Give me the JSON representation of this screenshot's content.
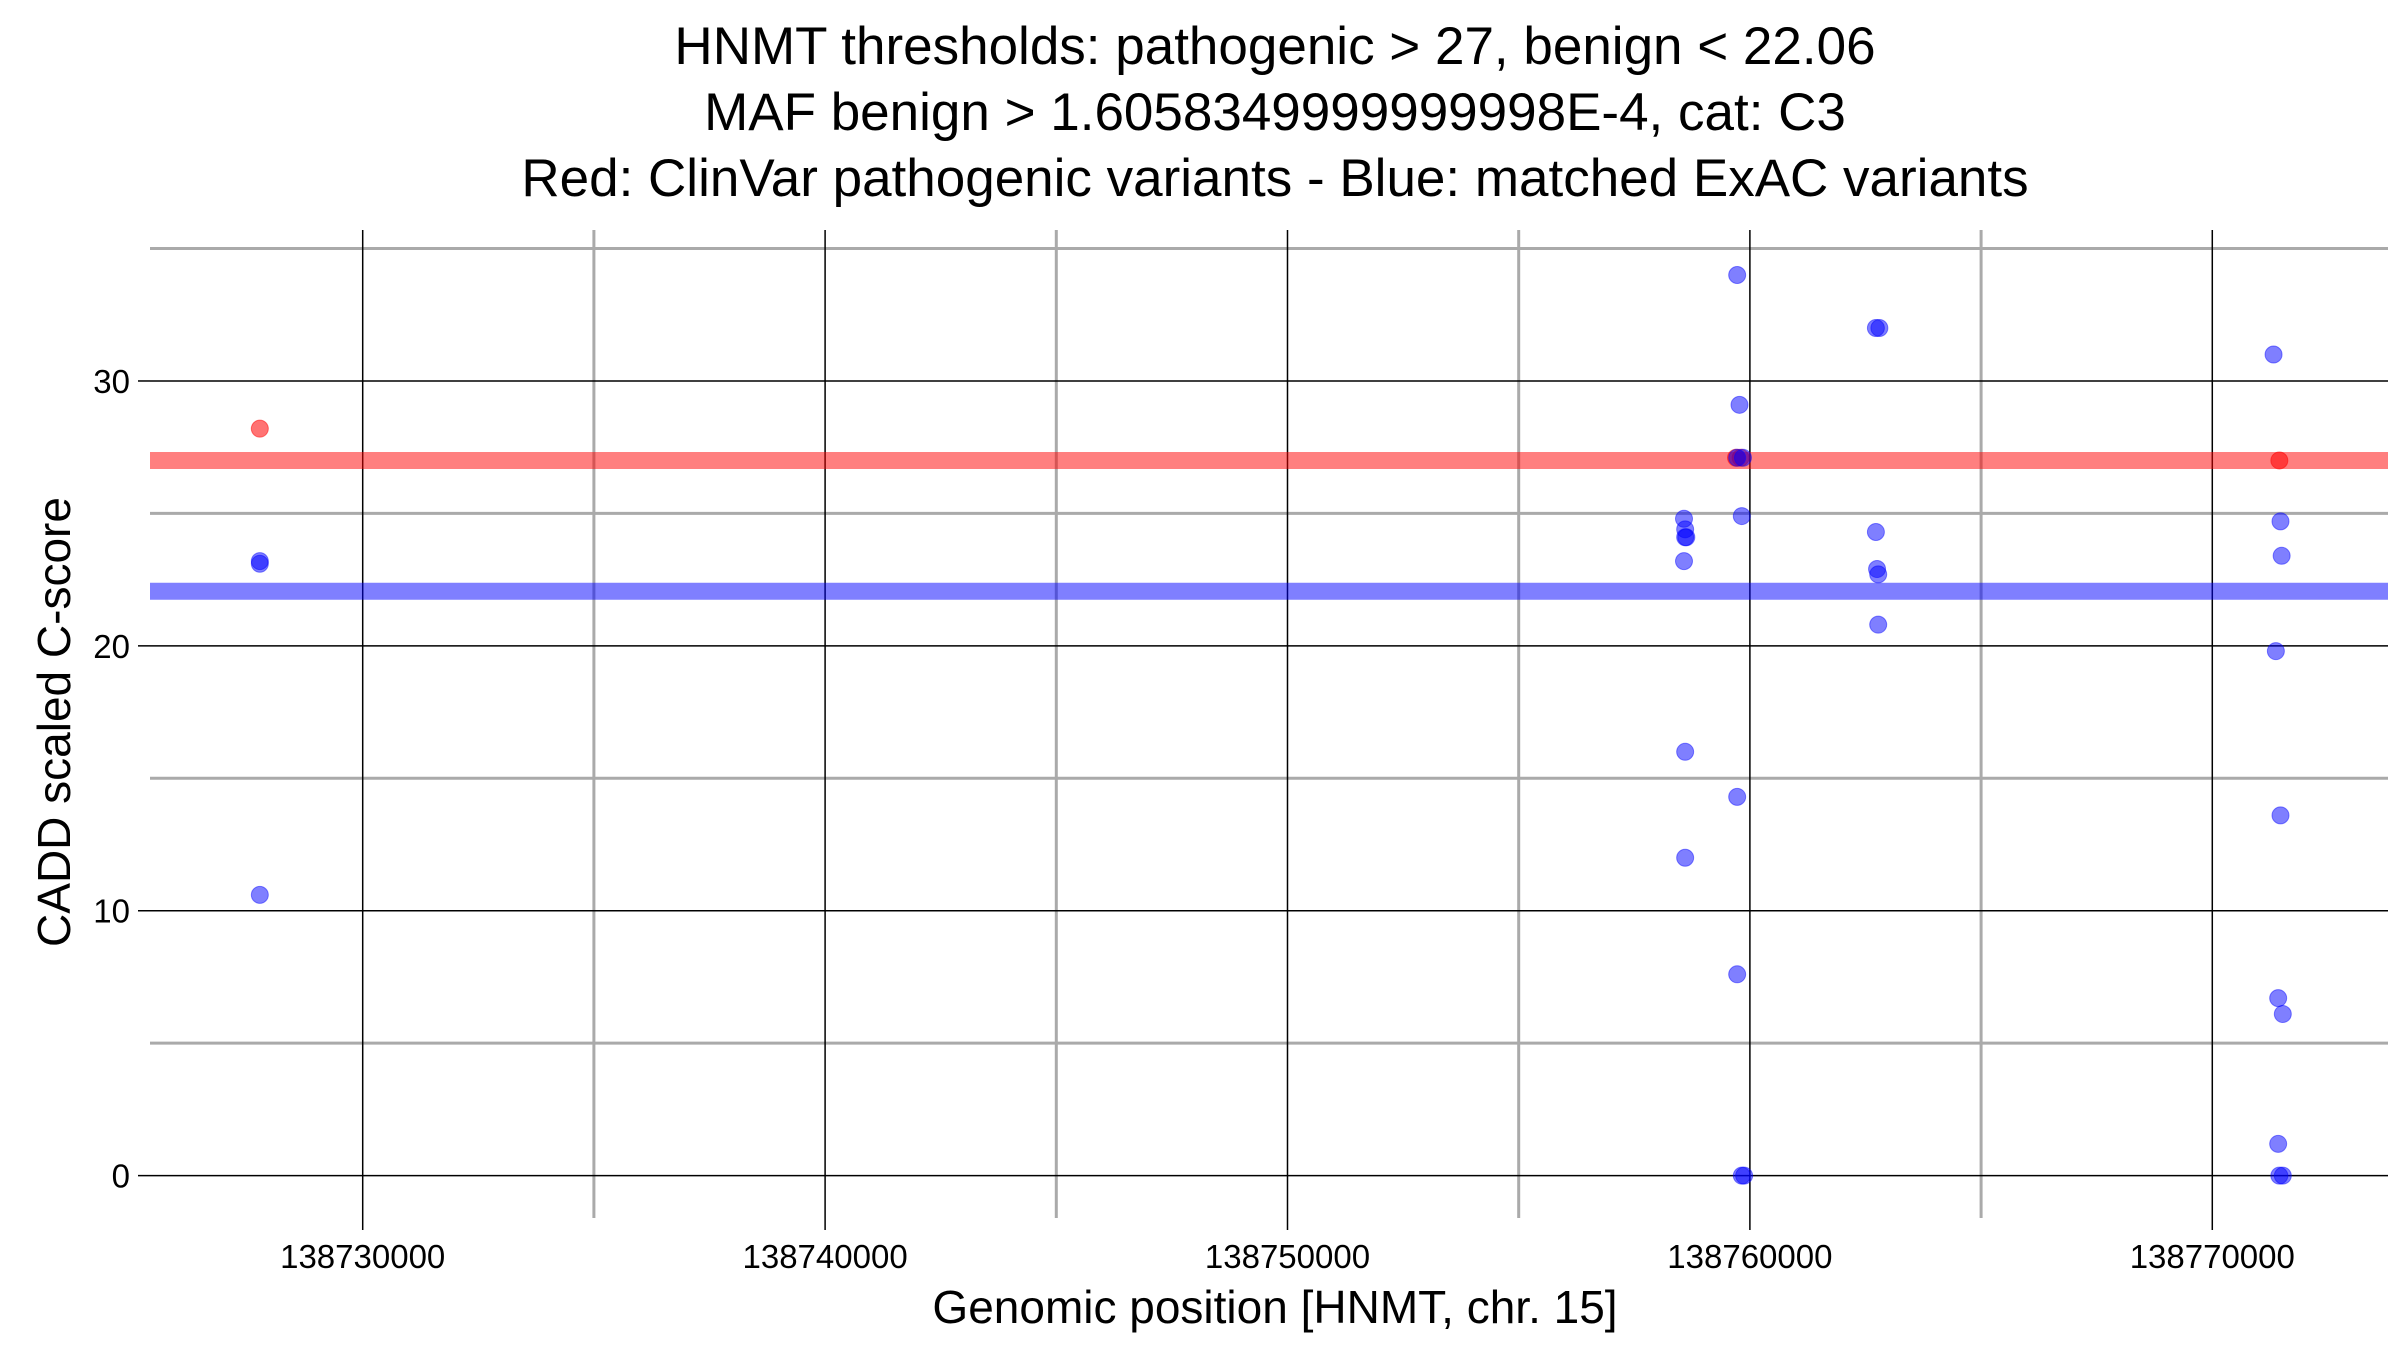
{
  "chart_data": {
    "type": "scatter",
    "title_lines": [
      "HNMT thresholds: pathogenic > 27, benign < 22.06",
      "MAF benign > 1.6058349999999998E-4, cat: C3",
      "Red: ClinVar pathogenic variants - Blue: matched ExAC variants"
    ],
    "xlabel": "Genomic position [HNMT, chr. 15]",
    "ylabel": "CADD scaled C-score",
    "xlim": [
      138725400,
      138773800
    ],
    "ylim": [
      -1.6,
      35.7
    ],
    "x_ticks": [
      {
        "value": 138730000,
        "label": "138730000"
      },
      {
        "value": 138740000,
        "label": "138740000"
      },
      {
        "value": 138750000,
        "label": "138750000"
      },
      {
        "value": 138760000,
        "label": "138760000"
      },
      {
        "value": 138770000,
        "label": "138770000"
      }
    ],
    "x_minor_gridlines": [
      138735000,
      138745000,
      138755000,
      138765000
    ],
    "y_ticks": [
      {
        "value": 0,
        "label": "0"
      },
      {
        "value": 10,
        "label": "10"
      },
      {
        "value": 20,
        "label": "20"
      },
      {
        "value": 30,
        "label": "30"
      }
    ],
    "y_minor_gridlines": [
      5,
      15,
      25,
      35
    ],
    "grid": true,
    "thresholds": [
      {
        "name": "pathogenic",
        "value": 27,
        "color": "#ff0000",
        "opacity": 0.5
      },
      {
        "name": "benign",
        "value": 22.06,
        "color": "#0000ff",
        "opacity": 0.5
      }
    ],
    "series": [
      {
        "color": "#ff0000",
        "opacity": 0.55,
        "points": [
          [
            138727775,
            28.2
          ],
          [
            138759700,
            27.1
          ],
          [
            138759800,
            27.1
          ],
          [
            138771450,
            27.0
          ]
        ]
      },
      {
        "color": "#0000ff",
        "opacity": 0.5,
        "points": [
          [
            138727775,
            23.2
          ],
          [
            138727775,
            23.1
          ],
          [
            138727775,
            10.6
          ],
          [
            138758575,
            24.8
          ],
          [
            138758600,
            24.4
          ],
          [
            138758600,
            24.1
          ],
          [
            138758625,
            24.1
          ],
          [
            138758575,
            23.2
          ],
          [
            138758600,
            16.0
          ],
          [
            138758600,
            12.0
          ],
          [
            138759725,
            34.0
          ],
          [
            138759775,
            29.1
          ],
          [
            138759725,
            27.1
          ],
          [
            138759850,
            27.1
          ],
          [
            138759825,
            24.9
          ],
          [
            138759725,
            14.3
          ],
          [
            138759725,
            7.6
          ],
          [
            138759825,
            0.0
          ],
          [
            138759875,
            0.0
          ],
          [
            138762725,
            32.0
          ],
          [
            138762800,
            32.0
          ],
          [
            138762725,
            24.3
          ],
          [
            138762750,
            22.9
          ],
          [
            138762775,
            22.7
          ],
          [
            138762775,
            20.8
          ],
          [
            138771325,
            31.0
          ],
          [
            138771475,
            24.7
          ],
          [
            138771500,
            23.4
          ],
          [
            138771375,
            19.8
          ],
          [
            138771475,
            13.6
          ],
          [
            138771425,
            6.7
          ],
          [
            138771525,
            6.1
          ],
          [
            138771425,
            1.2
          ],
          [
            138771450,
            0.0
          ],
          [
            138771525,
            0.0
          ]
        ]
      }
    ]
  }
}
